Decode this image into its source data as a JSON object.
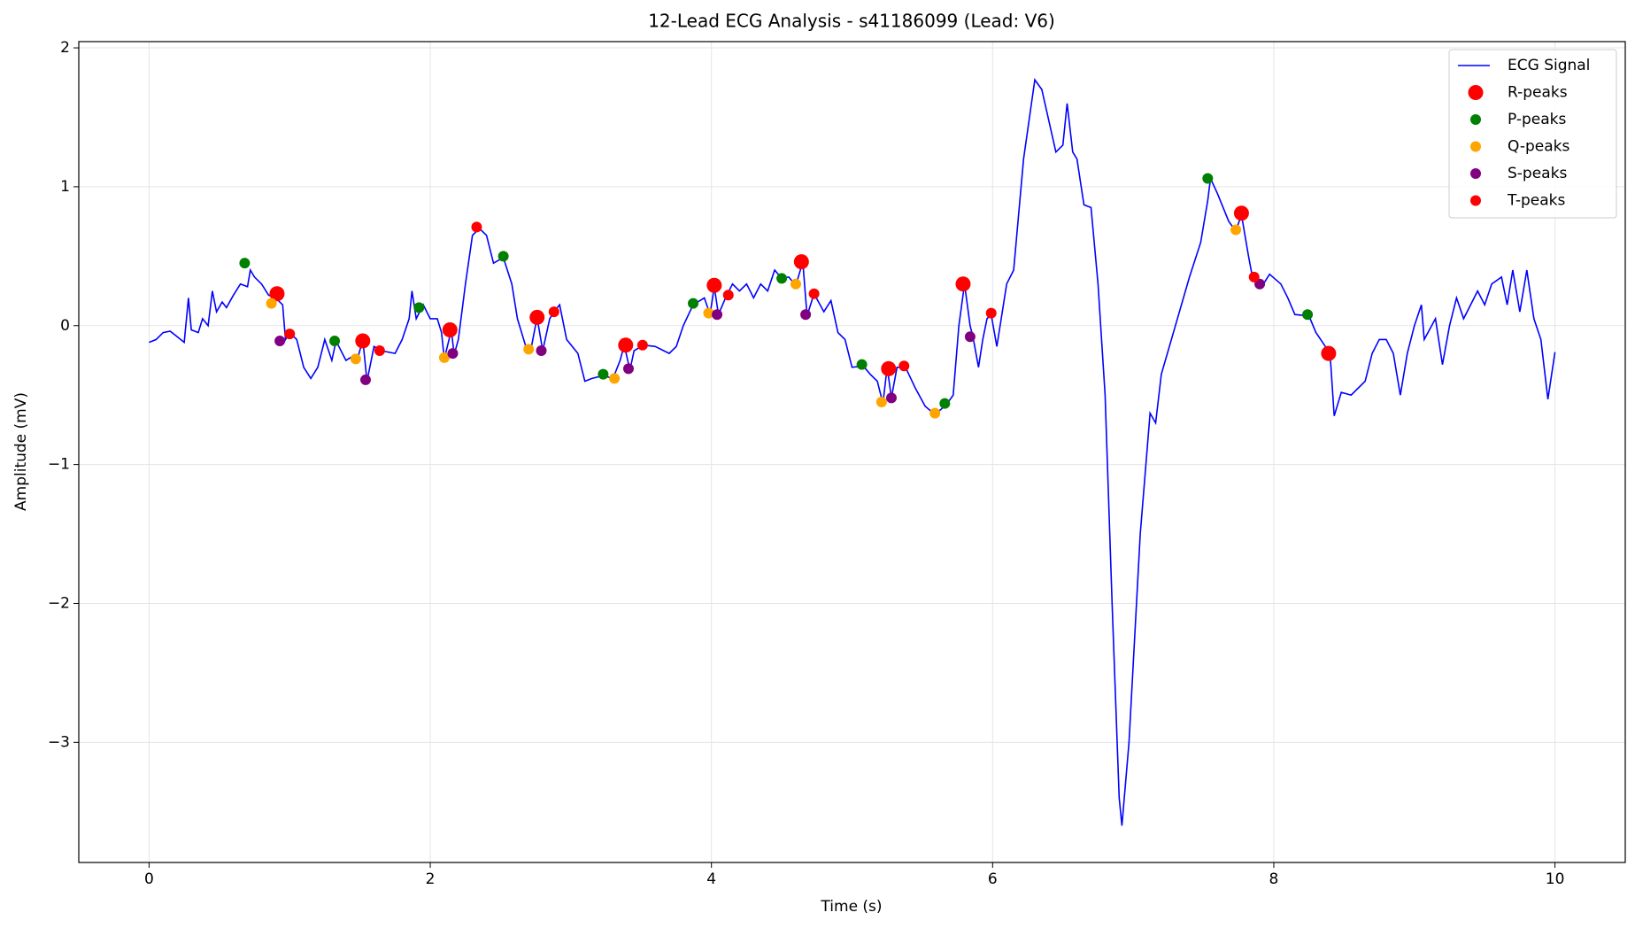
{
  "chart_data": {
    "type": "line",
    "title": "12-Lead ECG Analysis - s41186099 (Lead: V6)",
    "xlabel": "Time (s)",
    "ylabel": "Amplitude (mV)",
    "xlim": [
      -0.5,
      10.5
    ],
    "ylim": [
      -3.865,
      2.045
    ],
    "xticks": [
      0,
      2,
      4,
      6,
      8,
      10
    ],
    "yticks": [
      {
        "value": -3,
        "label": "−3"
      },
      {
        "value": -2,
        "label": "−2"
      },
      {
        "value": -1,
        "label": "−1"
      },
      0,
      1,
      2
    ],
    "grid": true,
    "legend": "upper right",
    "series": [
      {
        "name": "ECG Signal",
        "type": "line",
        "color": "#0000ff",
        "x": [
          0,
          0.05,
          0.1,
          0.15,
          0.2,
          0.25,
          0.28,
          0.3,
          0.35,
          0.38,
          0.42,
          0.45,
          0.48,
          0.52,
          0.55,
          0.6,
          0.65,
          0.7,
          0.72,
          0.75,
          0.8,
          0.85,
          0.9,
          0.95,
          0.97,
          1.0,
          1.05,
          1.1,
          1.15,
          1.2,
          1.25,
          1.3,
          1.33,
          1.4,
          1.45,
          1.48,
          1.52,
          1.55,
          1.6,
          1.65,
          1.75,
          1.8,
          1.85,
          1.87,
          1.9,
          1.95,
          2.0,
          2.05,
          2.08,
          2.1,
          2.15,
          2.17,
          2.2,
          2.25,
          2.3,
          2.35,
          2.4,
          2.45,
          2.52,
          2.58,
          2.62,
          2.68,
          2.72,
          2.76,
          2.8,
          2.85,
          2.88,
          2.92,
          2.97,
          3.05,
          3.1,
          3.15,
          3.23,
          3.3,
          3.35,
          3.38,
          3.42,
          3.45,
          3.52,
          3.6,
          3.7,
          3.75,
          3.8,
          3.87,
          3.95,
          3.99,
          4.02,
          4.05,
          4.1,
          4.15,
          4.2,
          4.25,
          4.3,
          4.35,
          4.4,
          4.45,
          4.5,
          4.55,
          4.6,
          4.65,
          4.68,
          4.73,
          4.8,
          4.85,
          4.9,
          4.95,
          5.0,
          5.08,
          5.13,
          5.18,
          5.22,
          5.25,
          5.28,
          5.32,
          5.38,
          5.45,
          5.52,
          5.59,
          5.67,
          5.72,
          5.76,
          5.8,
          5.84,
          5.86,
          5.9,
          5.93,
          5.96,
          5.99,
          6.03,
          6.1,
          6.15,
          6.22,
          6.3,
          6.35,
          6.45,
          6.5,
          6.53,
          6.57,
          6.6,
          6.65,
          6.7,
          6.75,
          6.8,
          6.85,
          6.9,
          6.92,
          6.97,
          7.05,
          7.12,
          7.16,
          7.2,
          7.3,
          7.4,
          7.48,
          7.53,
          7.55,
          7.6,
          7.68,
          7.73,
          7.77,
          7.82,
          7.85,
          7.92,
          7.97,
          8.05,
          8.1,
          8.15,
          8.25,
          8.3,
          8.4,
          8.43,
          8.48,
          8.55,
          8.65,
          8.7,
          8.75,
          8.8,
          8.85,
          8.9,
          8.95,
          9.0,
          9.05,
          9.07,
          9.15,
          9.2,
          9.25,
          9.3,
          9.35,
          9.45,
          9.5,
          9.55,
          9.62,
          9.66,
          9.7,
          9.75,
          9.8,
          9.85,
          9.9,
          9.95,
          10.0
        ],
        "values": [
          -0.12,
          -0.1,
          -0.05,
          -0.04,
          -0.08,
          -0.12,
          0.2,
          -0.03,
          -0.05,
          0.05,
          0.0,
          0.25,
          0.1,
          0.17,
          0.13,
          0.22,
          0.3,
          0.28,
          0.4,
          0.35,
          0.3,
          0.22,
          0.2,
          0.15,
          -0.1,
          -0.05,
          -0.1,
          -0.3,
          -0.38,
          -0.3,
          -0.1,
          -0.25,
          -0.11,
          -0.25,
          -0.22,
          -0.25,
          -0.1,
          -0.4,
          -0.15,
          -0.18,
          -0.2,
          -0.1,
          0.05,
          0.25,
          0.05,
          0.15,
          0.05,
          0.05,
          -0.05,
          -0.24,
          -0.03,
          -0.21,
          -0.1,
          0.3,
          0.65,
          0.7,
          0.65,
          0.45,
          0.49,
          0.3,
          0.05,
          -0.15,
          -0.15,
          0.06,
          -0.18,
          0.05,
          0.1,
          0.15,
          -0.1,
          -0.2,
          -0.4,
          -0.38,
          -0.36,
          -0.38,
          -0.25,
          -0.14,
          -0.32,
          -0.18,
          -0.14,
          -0.15,
          -0.2,
          -0.15,
          0.0,
          0.15,
          0.2,
          0.08,
          0.28,
          0.08,
          0.2,
          0.3,
          0.25,
          0.3,
          0.2,
          0.3,
          0.25,
          0.4,
          0.34,
          0.35,
          0.29,
          0.46,
          0.07,
          0.23,
          0.1,
          0.18,
          -0.05,
          -0.1,
          -0.3,
          -0.29,
          -0.35,
          -0.4,
          -0.56,
          -0.3,
          -0.52,
          -0.3,
          -0.3,
          -0.45,
          -0.58,
          -0.64,
          -0.57,
          -0.5,
          0.0,
          0.3,
          0.0,
          -0.08,
          -0.3,
          -0.1,
          0.05,
          0.08,
          -0.15,
          0.3,
          0.4,
          1.2,
          1.77,
          1.7,
          1.25,
          1.3,
          1.6,
          1.25,
          1.2,
          0.87,
          0.85,
          0.3,
          -0.5,
          -2.0,
          -3.4,
          -3.6,
          -3.0,
          -1.5,
          -0.63,
          -0.7,
          -0.35,
          0.0,
          0.35,
          0.6,
          0.9,
          1.06,
          0.95,
          0.75,
          0.68,
          0.8,
          0.5,
          0.34,
          0.29,
          0.37,
          0.3,
          0.2,
          0.08,
          0.07,
          -0.05,
          -0.2,
          -0.65,
          -0.48,
          -0.5,
          -0.4,
          -0.2,
          -0.1,
          -0.1,
          -0.2,
          -0.5,
          -0.2,
          0.0,
          0.15,
          -0.1,
          0.05,
          -0.28,
          0.0,
          0.2,
          0.05,
          0.25,
          0.15,
          0.3,
          0.35,
          0.15,
          0.4,
          0.1,
          0.4,
          0.05,
          -0.1,
          -0.53,
          -0.19
        ]
      },
      {
        "name": "R-peaks",
        "type": "scatter",
        "color": "#ff0000",
        "size": "large",
        "x": [
          0.91,
          1.52,
          2.14,
          2.76,
          3.39,
          4.02,
          4.64,
          5.26,
          5.79,
          7.77,
          8.39
        ],
        "values": [
          0.23,
          -0.11,
          -0.03,
          0.06,
          -0.14,
          0.29,
          0.46,
          -0.31,
          0.3,
          0.81,
          -0.2
        ]
      },
      {
        "name": "P-peaks",
        "type": "scatter",
        "color": "#008000",
        "size": "small",
        "x": [
          0.68,
          1.32,
          1.92,
          2.52,
          3.23,
          3.87,
          4.5,
          5.07,
          5.66,
          7.53,
          8.24
        ],
        "values": [
          0.45,
          -0.11,
          0.13,
          0.5,
          -0.35,
          0.16,
          0.34,
          -0.28,
          -0.56,
          1.06,
          0.08
        ]
      },
      {
        "name": "Q-peaks",
        "type": "scatter",
        "color": "#ffa500",
        "size": "small",
        "x": [
          0.87,
          1.47,
          2.1,
          2.7,
          3.31,
          3.98,
          4.6,
          5.21,
          5.59,
          7.73
        ],
        "values": [
          0.16,
          -0.24,
          -0.23,
          -0.17,
          -0.38,
          0.09,
          0.3,
          -0.55,
          -0.63,
          0.69
        ]
      },
      {
        "name": "S-peaks",
        "type": "scatter",
        "color": "#800080",
        "size": "small",
        "x": [
          0.93,
          1.54,
          2.16,
          2.79,
          3.41,
          4.04,
          4.67,
          5.28,
          5.84,
          7.9
        ],
        "values": [
          -0.11,
          -0.39,
          -0.2,
          -0.18,
          -0.31,
          0.08,
          0.08,
          -0.52,
          -0.08,
          0.3
        ]
      },
      {
        "name": "T-peaks",
        "type": "scatter",
        "color": "#ff0000",
        "size": "small",
        "x": [
          1.0,
          1.64,
          2.33,
          2.88,
          3.51,
          4.12,
          4.73,
          5.37,
          5.99,
          7.86
        ],
        "values": [
          -0.06,
          -0.18,
          0.71,
          0.1,
          -0.14,
          0.22,
          0.23,
          -0.29,
          0.09,
          0.35
        ]
      }
    ]
  }
}
